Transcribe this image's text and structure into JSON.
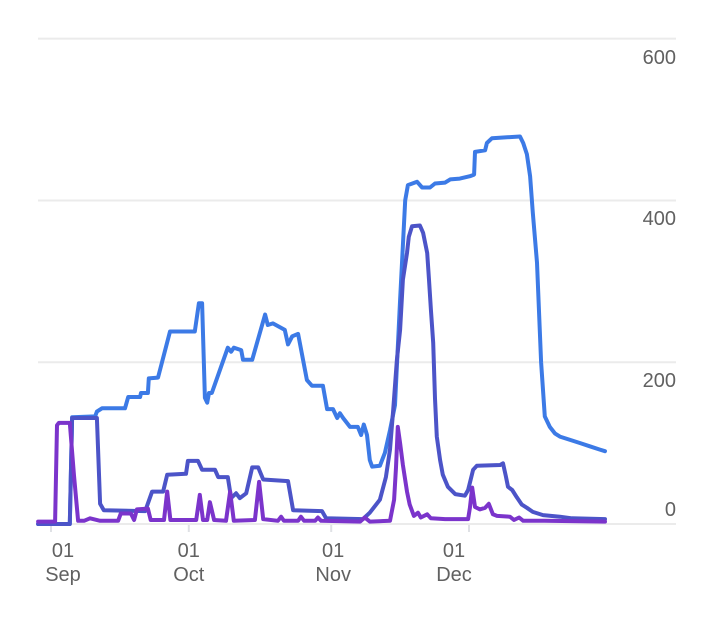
{
  "axes": {
    "y_labels": [
      "600",
      "400",
      "200",
      "0"
    ],
    "x_ticks": [
      {
        "line1": "01",
        "line2": "Sep"
      },
      {
        "line1": "01",
        "line2": "Oct"
      },
      {
        "line1": "01",
        "line2": "Nov"
      },
      {
        "line1": "01",
        "line2": "Dec"
      }
    ]
  },
  "colors": {
    "grid": "#ebebeb",
    "tick": "#dfe1e5",
    "axis_text": "#616161",
    "series_blue": "#3c7ae6",
    "series_indigo": "#4c54c8",
    "series_purple": "#7b34cb"
  },
  "chart_data": {
    "type": "line",
    "title": "",
    "xlabel": "",
    "ylabel": "",
    "x_unit": "days_since_sep_01",
    "x_range": [
      -2.8,
      120.6
    ],
    "ylim": [
      0,
      600
    ],
    "y_gridline_values": [
      600,
      400,
      200,
      0
    ],
    "x_tick_days": [
      0,
      30,
      61,
      91
    ],
    "grid": "horizontal_only",
    "legend": "none",
    "series": [
      {
        "name": "blue",
        "color": "#3c7ae6",
        "points": [
          [
            -2.8,
            0
          ],
          [
            4.1,
            0
          ],
          [
            4.6,
            132
          ],
          [
            9.6,
            133
          ],
          [
            10,
            139
          ],
          [
            11.1,
            143
          ],
          [
            16.1,
            143
          ],
          [
            16.8,
            157
          ],
          [
            19.4,
            157
          ],
          [
            19.6,
            162
          ],
          [
            21.1,
            162
          ],
          [
            21.3,
            180
          ],
          [
            23.3,
            181
          ],
          [
            25.9,
            238
          ],
          [
            31.3,
            238
          ],
          [
            32.2,
            273
          ],
          [
            32.9,
            273
          ],
          [
            33.5,
            156
          ],
          [
            34,
            150
          ],
          [
            34.4,
            162
          ],
          [
            35,
            162
          ],
          [
            38.5,
            218
          ],
          [
            39.2,
            213
          ],
          [
            39.8,
            218
          ],
          [
            41.4,
            215
          ],
          [
            41.8,
            203
          ],
          [
            43.8,
            203
          ],
          [
            46.6,
            259
          ],
          [
            47.2,
            246
          ],
          [
            48.3,
            248
          ],
          [
            50.9,
            240
          ],
          [
            51.6,
            222
          ],
          [
            52.5,
            232
          ],
          [
            53.8,
            235
          ],
          [
            55.7,
            178
          ],
          [
            56.8,
            171
          ],
          [
            59.2,
            171
          ],
          [
            60.1,
            142
          ],
          [
            61.4,
            142
          ],
          [
            62.3,
            131
          ],
          [
            62.9,
            137
          ],
          [
            63.6,
            131
          ],
          [
            65.1,
            120
          ],
          [
            66.8,
            120
          ],
          [
            67.5,
            110
          ],
          [
            68.1,
            123
          ],
          [
            68.8,
            110
          ],
          [
            69.4,
            79
          ],
          [
            69.9,
            71
          ],
          [
            71.6,
            72
          ],
          [
            72.7,
            88
          ],
          [
            73.8,
            116
          ],
          [
            74.9,
            147
          ],
          [
            76,
            277
          ],
          [
            77.1,
            400
          ],
          [
            77.7,
            419
          ],
          [
            79.7,
            423
          ],
          [
            80.8,
            416
          ],
          [
            82.5,
            416
          ],
          [
            83.6,
            421
          ],
          [
            85.8,
            422
          ],
          [
            86.9,
            426
          ],
          [
            89,
            427
          ],
          [
            91.2,
            430
          ],
          [
            92.1,
            432
          ],
          [
            92.3,
            460
          ],
          [
            94.5,
            462
          ],
          [
            94.9,
            471
          ],
          [
            96,
            477
          ],
          [
            102.1,
            479
          ],
          [
            102.8,
            471
          ],
          [
            103.6,
            457
          ],
          [
            104.3,
            430
          ],
          [
            104.9,
            385
          ],
          [
            105.8,
            323
          ],
          [
            106.7,
            200
          ],
          [
            107.5,
            133
          ],
          [
            108.6,
            120
          ],
          [
            109.7,
            112
          ],
          [
            110.8,
            108
          ],
          [
            113,
            104
          ],
          [
            115.2,
            100
          ],
          [
            117.3,
            96
          ],
          [
            119.5,
            92
          ],
          [
            120.6,
            90
          ]
        ]
      },
      {
        "name": "indigo",
        "color": "#4c54c8",
        "points": [
          [
            -2.8,
            0
          ],
          [
            4.1,
            0
          ],
          [
            4.6,
            131
          ],
          [
            10,
            131
          ],
          [
            10.7,
            25
          ],
          [
            11.5,
            17
          ],
          [
            20.5,
            16
          ],
          [
            22,
            40
          ],
          [
            24.4,
            40
          ],
          [
            25.3,
            61
          ],
          [
            29.4,
            62
          ],
          [
            29.8,
            78
          ],
          [
            32,
            78
          ],
          [
            32.9,
            67
          ],
          [
            35.7,
            67
          ],
          [
            36.4,
            58
          ],
          [
            38.5,
            58
          ],
          [
            39.2,
            32
          ],
          [
            40.3,
            38
          ],
          [
            41.1,
            32
          ],
          [
            42.5,
            38
          ],
          [
            43.8,
            70
          ],
          [
            45.1,
            70
          ],
          [
            46.2,
            55
          ],
          [
            51.6,
            53
          ],
          [
            52.7,
            17
          ],
          [
            59,
            16
          ],
          [
            59.9,
            7
          ],
          [
            67.9,
            6
          ],
          [
            69.4,
            14
          ],
          [
            71.6,
            30
          ],
          [
            72.9,
            58
          ],
          [
            73.8,
            92
          ],
          [
            74.5,
            141
          ],
          [
            75.3,
            203
          ],
          [
            76,
            240
          ],
          [
            76.6,
            302
          ],
          [
            77.5,
            335
          ],
          [
            77.9,
            355
          ],
          [
            78.6,
            368
          ],
          [
            80.3,
            369
          ],
          [
            81,
            360
          ],
          [
            81.9,
            335
          ],
          [
            82.3,
            302
          ],
          [
            82.7,
            265
          ],
          [
            83.2,
            224
          ],
          [
            83.6,
            155
          ],
          [
            84,
            108
          ],
          [
            84.7,
            79
          ],
          [
            85.3,
            61
          ],
          [
            86.4,
            46
          ],
          [
            88,
            37
          ],
          [
            90.1,
            35
          ],
          [
            90.8,
            42
          ],
          [
            91.9,
            67
          ],
          [
            92.7,
            72
          ],
          [
            97.8,
            73
          ],
          [
            98.4,
            75
          ],
          [
            99,
            60
          ],
          [
            99.5,
            46
          ],
          [
            100.4,
            42
          ],
          [
            101.4,
            33
          ],
          [
            102.5,
            24
          ],
          [
            103.6,
            20
          ],
          [
            104.9,
            15
          ],
          [
            107.1,
            11
          ],
          [
            110.8,
            9
          ],
          [
            113.4,
            7
          ],
          [
            120.6,
            6
          ]
        ]
      },
      {
        "name": "purple",
        "color": "#7b34cb",
        "points": [
          [
            -2.8,
            3
          ],
          [
            0.9,
            3
          ],
          [
            1.3,
            122
          ],
          [
            1.7,
            125
          ],
          [
            4.1,
            125
          ],
          [
            5,
            60
          ],
          [
            5.9,
            4
          ],
          [
            7.2,
            4
          ],
          [
            8.5,
            7
          ],
          [
            10.7,
            4
          ],
          [
            14.6,
            4
          ],
          [
            15.2,
            13
          ],
          [
            17.4,
            13
          ],
          [
            18.1,
            5
          ],
          [
            18.7,
            18
          ],
          [
            21.1,
            19
          ],
          [
            21.7,
            5
          ],
          [
            24.6,
            5
          ],
          [
            25.3,
            40
          ],
          [
            26,
            5
          ],
          [
            31.6,
            5
          ],
          [
            32.4,
            36
          ],
          [
            33.1,
            5
          ],
          [
            34,
            5
          ],
          [
            34.6,
            27
          ],
          [
            35.5,
            5
          ],
          [
            38.1,
            4
          ],
          [
            39,
            40
          ],
          [
            39.8,
            4
          ],
          [
            44.4,
            5
          ],
          [
            45.3,
            52
          ],
          [
            46.2,
            6
          ],
          [
            49.4,
            4
          ],
          [
            50.1,
            9
          ],
          [
            50.7,
            4
          ],
          [
            53.8,
            4
          ],
          [
            54.4,
            9
          ],
          [
            55.1,
            4
          ],
          [
            57.5,
            4
          ],
          [
            58.1,
            8
          ],
          [
            58.8,
            4
          ],
          [
            67.3,
            3
          ],
          [
            68.3,
            8
          ],
          [
            69.4,
            3
          ],
          [
            73.8,
            4
          ],
          [
            74.7,
            30
          ],
          [
            75.1,
            70
          ],
          [
            75.5,
            120
          ],
          [
            76,
            100
          ],
          [
            76.6,
            73
          ],
          [
            77.5,
            40
          ],
          [
            78.1,
            24
          ],
          [
            79,
            10
          ],
          [
            79.9,
            14
          ],
          [
            80.5,
            8
          ],
          [
            81.9,
            12
          ],
          [
            82.7,
            7
          ],
          [
            85.8,
            6
          ],
          [
            90.8,
            6
          ],
          [
            91.2,
            20
          ],
          [
            91.7,
            45
          ],
          [
            92.3,
            21
          ],
          [
            93.4,
            18
          ],
          [
            94.5,
            20
          ],
          [
            95.3,
            25
          ],
          [
            96.2,
            12
          ],
          [
            97.1,
            10
          ],
          [
            99.9,
            9
          ],
          [
            100.8,
            5
          ],
          [
            101.9,
            8
          ],
          [
            102.8,
            4
          ],
          [
            107.5,
            4
          ],
          [
            120.6,
            3
          ]
        ]
      }
    ]
  }
}
